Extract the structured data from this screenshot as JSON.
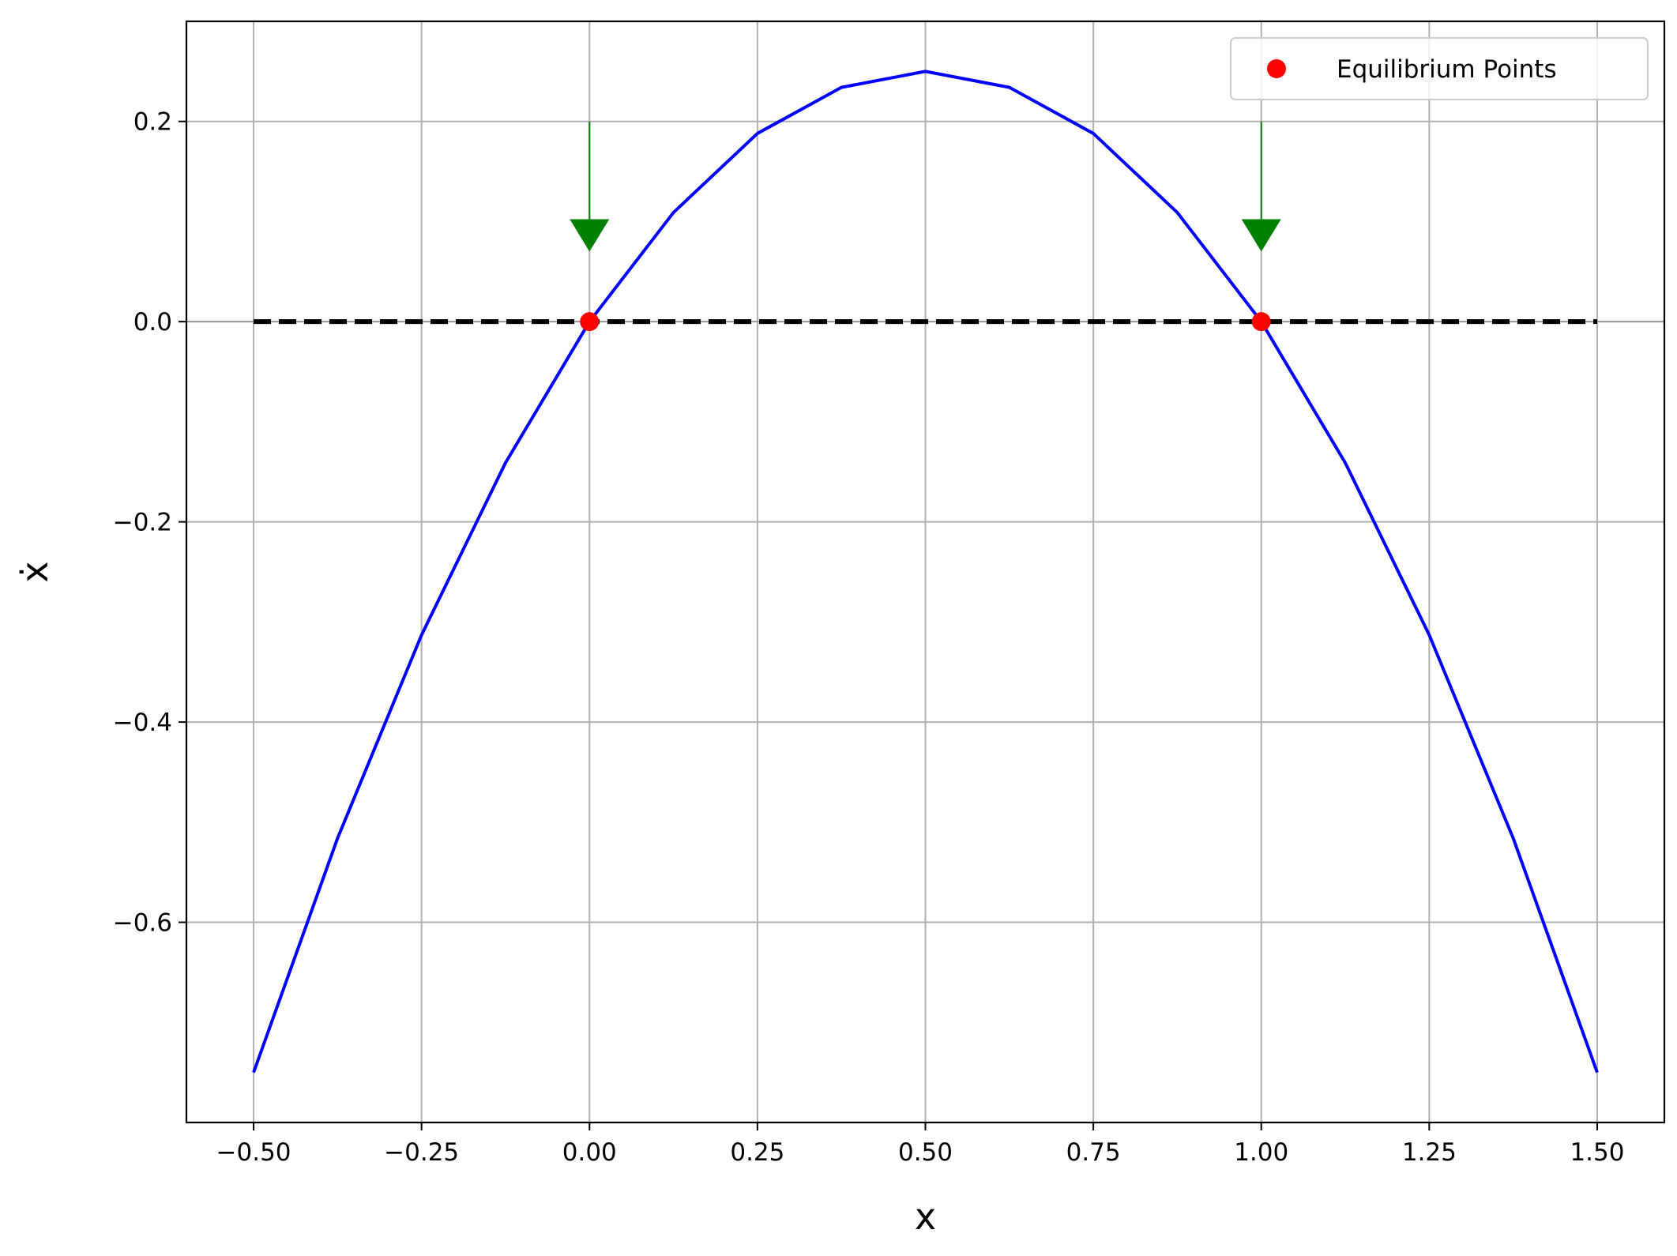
{
  "chart_data": {
    "type": "line",
    "title": "",
    "xlabel": "x",
    "ylabel": "ẋ",
    "xlim": [
      -0.6,
      1.6
    ],
    "ylim": [
      -0.8,
      0.3
    ],
    "x_ticks": [
      -0.5,
      -0.25,
      0.0,
      0.25,
      0.5,
      0.75,
      1.0,
      1.25,
      1.5
    ],
    "x_tick_labels": [
      "−0.50",
      "−0.25",
      "0.00",
      "0.25",
      "0.50",
      "0.75",
      "1.00",
      "1.25",
      "1.50"
    ],
    "y_ticks": [
      0.2,
      0.0,
      -0.2,
      -0.4,
      -0.6
    ],
    "y_tick_labels": [
      "0.2",
      "0.0",
      "−0.2",
      "−0.4",
      "−0.6"
    ],
    "grid": true,
    "legend": {
      "location": "top-right",
      "entries": [
        "Equilibrium Points"
      ]
    },
    "series": [
      {
        "kind": "curve",
        "label": "",
        "color": "#0000ff",
        "x": [
          -0.5,
          -0.375,
          -0.25,
          -0.125,
          0.0,
          0.125,
          0.25,
          0.375,
          0.5,
          0.625,
          0.75,
          0.875,
          1.0,
          1.125,
          1.25,
          1.375,
          1.5
        ],
        "y": [
          -0.75,
          -0.516,
          -0.313,
          -0.141,
          0.0,
          0.109,
          0.188,
          0.234,
          0.25,
          0.234,
          0.188,
          0.109,
          0.0,
          -0.141,
          -0.313,
          -0.516,
          -0.75
        ]
      },
      {
        "kind": "hline-dashed",
        "label": "",
        "color": "#000000",
        "x": [
          -0.5,
          1.5
        ],
        "y": [
          0.0,
          0.0
        ]
      },
      {
        "kind": "points",
        "label": "Equilibrium Points",
        "color": "#ff0000",
        "x": [
          0.0,
          1.0
        ],
        "y": [
          0.0,
          0.0
        ]
      }
    ],
    "arrows": [
      {
        "x": 0.0,
        "y_start": 0.2,
        "y_end": 0.07,
        "color": "#008000"
      },
      {
        "x": 1.0,
        "y_start": 0.2,
        "y_end": 0.07,
        "color": "#008000"
      }
    ],
    "reference_line": {
      "y": 0.0,
      "color": "#9a9a9a"
    }
  }
}
